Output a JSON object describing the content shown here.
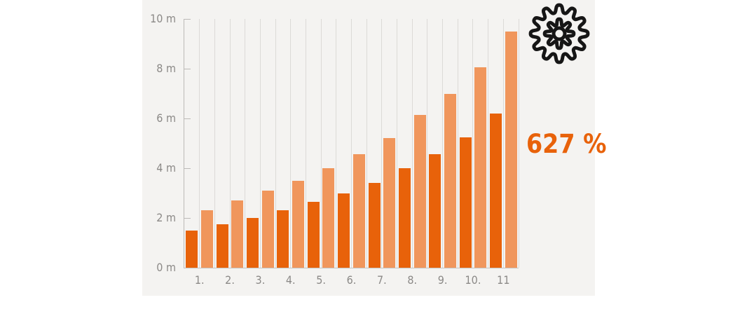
{
  "chart_data": {
    "type": "bar",
    "title": "",
    "categories": [
      "1.",
      "2.",
      "3.",
      "4.",
      "5.",
      "6.",
      "7.",
      "8.",
      "9.",
      "10.",
      "11"
    ],
    "series": [
      {
        "name": "dark-orange-bars",
        "color": "#e8620a",
        "values": [
          1.5,
          1.75,
          2.0,
          2.3,
          2.65,
          3.0,
          3.4,
          4.0,
          4.55,
          5.25,
          6.2
        ]
      },
      {
        "name": "light-orange-bars",
        "color": "#f0965c",
        "values": [
          2.3,
          2.7,
          3.1,
          3.5,
          4.0,
          4.55,
          5.2,
          6.15,
          7.0,
          8.05,
          9.5
        ]
      }
    ],
    "xlabel": "",
    "ylabel": "",
    "ylim": [
      0,
      10
    ],
    "ytick_values": [
      0,
      2,
      4,
      6,
      8,
      10
    ],
    "ytick_labels": [
      "0 m",
      "2 m",
      "4 m",
      "6 m",
      "8 m",
      "10 m"
    ],
    "grid": "vertical",
    "legend": "none",
    "annotations": [
      {
        "text": "627 %",
        "color": "#e8620a",
        "position": "right-of-last-bars"
      }
    ]
  },
  "annotation": {
    "growth_label": "627 %"
  },
  "icons": {
    "gear": "gear-icon"
  },
  "colors": {
    "page_background": "#ffffff",
    "panel_background": "#f4f3f1",
    "gridline": "#dcdad7",
    "axis": "#bcbab7",
    "tick_label": "#8b8987",
    "accent": "#e8620a",
    "accent_light": "#f0965c",
    "icon_stroke": "#161616"
  }
}
